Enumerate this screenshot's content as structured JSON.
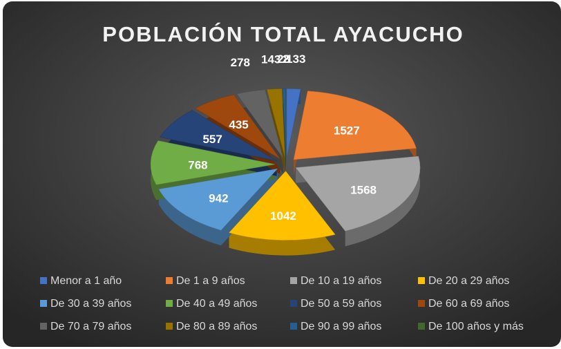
{
  "chart_data": {
    "type": "pie",
    "title": "POBLACIÓN TOTAL AYACUCHO",
    "categories": [
      "Menor a 1 año",
      "De 1 a 9 años",
      "De 10 a 19 años",
      "De 20 a 29 años",
      "De 30 a 39 años",
      "De 40 a 49 años",
      "De 50 a 59 años",
      "De 60 a 69 años",
      "De 70 a 79 años",
      "De 80 a 89 años",
      "De 90 a 99 años",
      "De 100 años y más"
    ],
    "values": [
      133,
      1527,
      1568,
      1042,
      942,
      768,
      557,
      435,
      278,
      143,
      28,
      2
    ],
    "colors": [
      "#4472c4",
      "#ed7d31",
      "#a5a5a5",
      "#ffc000",
      "#5b9bd5",
      "#70ad47",
      "#264478",
      "#9e480e",
      "#636363",
      "#997300",
      "#255e91",
      "#43682b"
    ],
    "legend": "bottom"
  }
}
